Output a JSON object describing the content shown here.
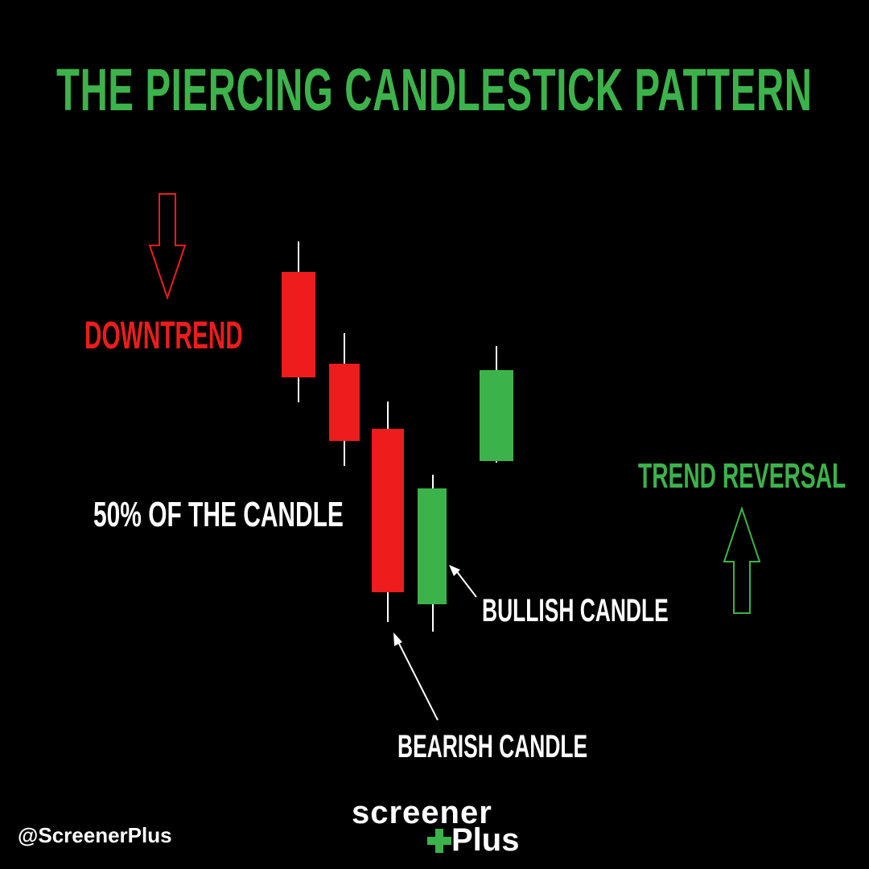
{
  "title": "THE PIERCING CANDLESTICK PATTERN",
  "labels": {
    "downtrend": "DOWNTREND",
    "fifty_percent": "50% OF THE CANDLE",
    "trend_reversal": "TREND REVERSAL",
    "bullish_candle": "BULLISH CANDLE",
    "bearish_candle": "BEARISH CANDLE"
  },
  "handle": "@ScreenerPlus",
  "logo": {
    "word1": "screener",
    "word2": "Plus"
  },
  "icons": {
    "down_arrow": "down-arrow-outline-icon",
    "up_arrow": "up-arrow-outline-icon",
    "logo_plus": "plus-icon"
  },
  "colors": {
    "background": "#000000",
    "title": "#3cb34a",
    "bearish": "#ee1c1c",
    "bullish": "#3cb34a",
    "downtrend_text": "#ee1c1c",
    "reversal_text": "#3cb34a",
    "wick": "#ffffff",
    "annotation": "#ffffff"
  }
}
